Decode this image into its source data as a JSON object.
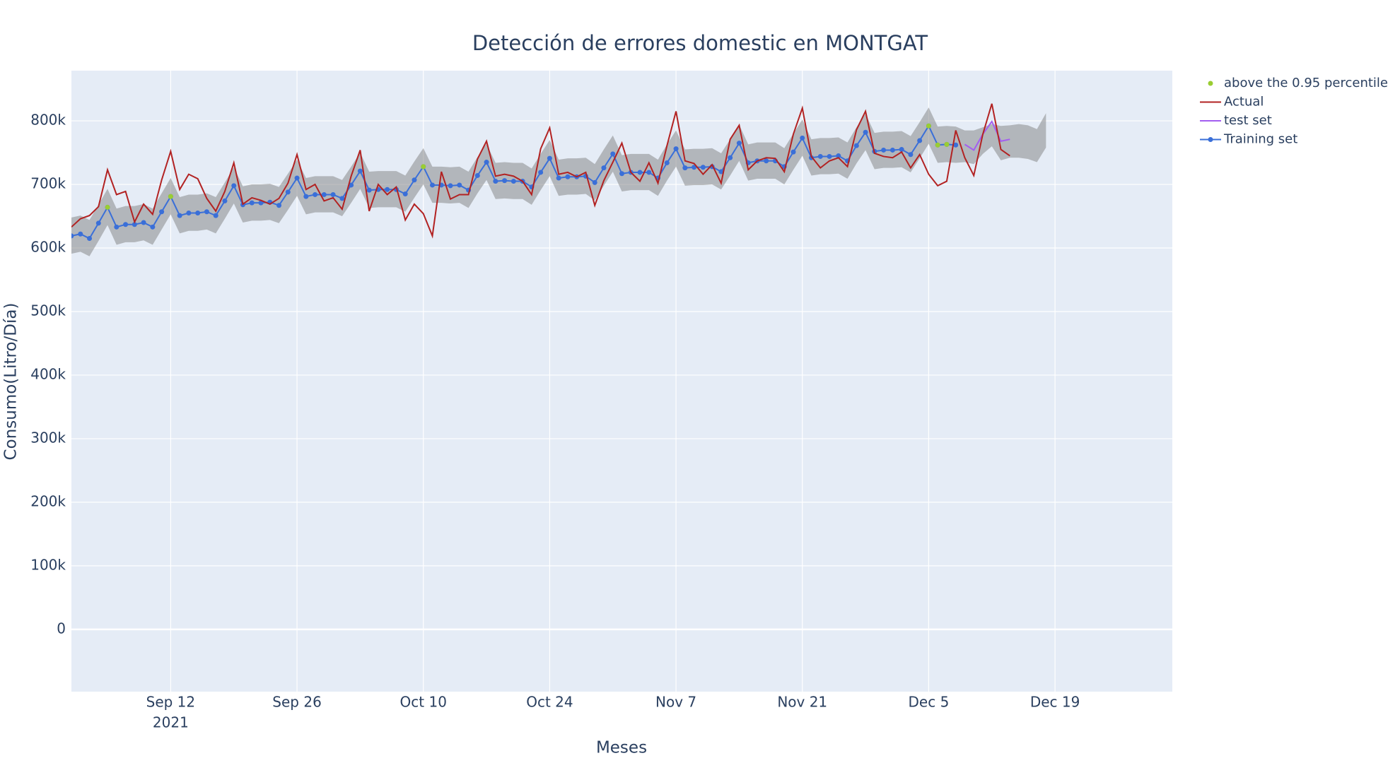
{
  "chart_data": {
    "type": "line",
    "title": "Detección de errores domestic en MONTGAT",
    "x_label": "Meses",
    "y_label": "Consumo(Litro/Día)",
    "x": [
      "2021-09-01",
      "2021-09-02",
      "2021-09-03",
      "2021-09-04",
      "2021-09-05",
      "2021-09-06",
      "2021-09-07",
      "2021-09-08",
      "2021-09-09",
      "2021-09-10",
      "2021-09-11",
      "2021-09-12",
      "2021-09-13",
      "2021-09-14",
      "2021-09-15",
      "2021-09-16",
      "2021-09-17",
      "2021-09-18",
      "2021-09-19",
      "2021-09-20",
      "2021-09-21",
      "2021-09-22",
      "2021-09-23",
      "2021-09-24",
      "2021-09-25",
      "2021-09-26",
      "2021-09-27",
      "2021-09-28",
      "2021-09-29",
      "2021-09-30",
      "2021-10-01",
      "2021-10-02",
      "2021-10-03",
      "2021-10-04",
      "2021-10-05",
      "2021-10-06",
      "2021-10-07",
      "2021-10-08",
      "2021-10-09",
      "2021-10-10",
      "2021-10-11",
      "2021-10-12",
      "2021-10-13",
      "2021-10-14",
      "2021-10-15",
      "2021-10-16",
      "2021-10-17",
      "2021-10-18",
      "2021-10-19",
      "2021-10-20",
      "2021-10-21",
      "2021-10-22",
      "2021-10-23",
      "2021-10-24",
      "2021-10-25",
      "2021-10-26",
      "2021-10-27",
      "2021-10-28",
      "2021-10-29",
      "2021-10-30",
      "2021-10-31",
      "2021-11-01",
      "2021-11-02",
      "2021-11-03",
      "2021-11-04",
      "2021-11-05",
      "2021-11-06",
      "2021-11-07",
      "2021-11-08",
      "2021-11-09",
      "2021-11-10",
      "2021-11-11",
      "2021-11-12",
      "2021-11-13",
      "2021-11-14",
      "2021-11-15",
      "2021-11-16",
      "2021-11-17",
      "2021-11-18",
      "2021-11-19",
      "2021-11-20",
      "2021-11-21",
      "2021-11-22",
      "2021-11-23",
      "2021-11-24",
      "2021-11-25",
      "2021-11-26",
      "2021-11-27",
      "2021-11-28",
      "2021-11-29",
      "2021-11-30",
      "2021-12-01",
      "2021-12-02",
      "2021-12-03",
      "2021-12-04",
      "2021-12-05",
      "2021-12-06",
      "2021-12-07",
      "2021-12-08",
      "2021-12-09",
      "2021-12-10",
      "2021-12-11",
      "2021-12-12",
      "2021-12-13",
      "2021-12-14",
      "2021-12-15",
      "2021-12-16",
      "2021-12-17",
      "2021-12-18"
    ],
    "band": {
      "color": "rgba(128,128,128,0.5)",
      "upper": [
        648000,
        651000,
        644000,
        668000,
        693000,
        662000,
        666000,
        666000,
        669000,
        662000,
        686000,
        710000,
        680000,
        684000,
        684000,
        686000,
        680000,
        703000,
        727000,
        697000,
        700000,
        700000,
        701000,
        696000,
        717000,
        739000,
        710000,
        713000,
        713000,
        713000,
        707000,
        728000,
        750000,
        720000,
        721000,
        721000,
        721000,
        714000,
        736000,
        757000,
        728000,
        728000,
        727000,
        728000,
        720000,
        743000,
        764000,
        734000,
        735000,
        734000,
        734000,
        725000,
        748000,
        770000,
        739000,
        741000,
        741000,
        742000,
        732000,
        755000,
        777000,
        746000,
        748000,
        748000,
        748000,
        739000,
        763000,
        785000,
        755000,
        756000,
        756000,
        757000,
        749000,
        771000,
        794000,
        763000,
        766000,
        766000,
        766000,
        757000,
        780000,
        802000,
        771000,
        773000,
        773000,
        774000,
        766000,
        790000,
        811000,
        781000,
        783000,
        783000,
        784000,
        776000,
        798000,
        821000,
        791000,
        792000,
        791000,
        785000,
        785000,
        790000,
        795000,
        792000,
        793000,
        795000,
        793000,
        787000,
        812000
      ],
      "lower": [
        591000,
        594000,
        587000,
        611000,
        636000,
        605000,
        609000,
        609000,
        612000,
        605000,
        629000,
        653000,
        623000,
        627000,
        627000,
        629000,
        623000,
        646000,
        670000,
        640000,
        643000,
        643000,
        644000,
        639000,
        660000,
        682000,
        653000,
        656000,
        656000,
        656000,
        650000,
        671000,
        693000,
        663000,
        664000,
        664000,
        664000,
        657000,
        679000,
        700000,
        671000,
        671000,
        670000,
        671000,
        663000,
        686000,
        707000,
        677000,
        678000,
        677000,
        677000,
        668000,
        691000,
        713000,
        682000,
        684000,
        684000,
        685000,
        675000,
        698000,
        720000,
        689000,
        691000,
        691000,
        691000,
        682000,
        706000,
        728000,
        698000,
        699000,
        699000,
        700000,
        692000,
        714000,
        737000,
        706000,
        709000,
        709000,
        709000,
        700000,
        723000,
        745000,
        714000,
        716000,
        716000,
        717000,
        709000,
        733000,
        754000,
        724000,
        726000,
        726000,
        727000,
        719000,
        741000,
        764000,
        734000,
        735000,
        734000,
        735000,
        732000,
        748000,
        760000,
        738000,
        742000,
        742000,
        740000,
        735000,
        758000
      ]
    },
    "series": [
      {
        "name": "above the 0.95 percentile",
        "color": "#9acd32",
        "mode": "markers",
        "values": [
          null,
          null,
          null,
          null,
          664000,
          null,
          null,
          null,
          null,
          null,
          null,
          681000,
          null,
          null,
          null,
          null,
          null,
          null,
          null,
          null,
          null,
          null,
          null,
          null,
          null,
          null,
          null,
          null,
          null,
          null,
          null,
          null,
          null,
          null,
          null,
          null,
          null,
          null,
          null,
          728000,
          null,
          null,
          null,
          null,
          null,
          null,
          null,
          null,
          null,
          null,
          null,
          null,
          null,
          null,
          null,
          null,
          null,
          null,
          null,
          null,
          null,
          null,
          null,
          null,
          null,
          null,
          null,
          null,
          null,
          null,
          null,
          null,
          null,
          null,
          null,
          null,
          null,
          null,
          null,
          null,
          null,
          null,
          null,
          null,
          null,
          null,
          null,
          null,
          null,
          null,
          null,
          null,
          null,
          null,
          null,
          792000,
          762000,
          763000,
          null,
          null,
          null,
          null,
          null,
          null,
          null,
          null,
          null,
          null,
          null
        ]
      },
      {
        "name": "Actual",
        "color": "#b22222",
        "mode": "lines",
        "values": [
          633000,
          646000,
          651000,
          665000,
          723000,
          684000,
          689000,
          641000,
          669000,
          653000,
          707000,
          752000,
          692000,
          716000,
          709000,
          678000,
          658000,
          689000,
          734000,
          669000,
          679000,
          675000,
          669000,
          678000,
          702000,
          747000,
          692000,
          700000,
          674000,
          679000,
          661000,
          713000,
          754000,
          658000,
          700000,
          684000,
          696000,
          644000,
          669000,
          654000,
          619000,
          720000,
          677000,
          684000,
          684000,
          740000,
          768000,
          713000,
          716000,
          713000,
          705000,
          684000,
          756000,
          789000,
          716000,
          719000,
          712000,
          719000,
          667000,
          706000,
          735000,
          765000,
          719000,
          705000,
          734000,
          702000,
          761000,
          815000,
          737000,
          733000,
          716000,
          731000,
          702000,
          771000,
          793000,
          723000,
          737000,
          742000,
          741000,
          720000,
          779000,
          820000,
          744000,
          726000,
          737000,
          742000,
          728000,
          786000,
          815000,
          749000,
          744000,
          742000,
          751000,
          726000,
          747000,
          716000,
          698000,
          705000,
          785000,
          742000,
          714000,
          779000,
          827000,
          755000,
          745000,
          null,
          null,
          null,
          null
        ]
      },
      {
        "name": "test set",
        "color": "#a35ef0",
        "mode": "lines",
        "values": [
          null,
          null,
          null,
          null,
          null,
          null,
          null,
          null,
          null,
          null,
          null,
          null,
          null,
          null,
          null,
          null,
          null,
          null,
          null,
          null,
          null,
          null,
          null,
          null,
          null,
          null,
          null,
          null,
          null,
          null,
          null,
          null,
          null,
          null,
          null,
          null,
          null,
          null,
          null,
          null,
          null,
          null,
          null,
          null,
          null,
          null,
          null,
          null,
          null,
          null,
          null,
          null,
          null,
          null,
          null,
          null,
          null,
          null,
          null,
          null,
          null,
          null,
          null,
          null,
          null,
          null,
          null,
          null,
          null,
          null,
          null,
          null,
          null,
          null,
          null,
          null,
          null,
          null,
          null,
          null,
          null,
          null,
          null,
          null,
          null,
          null,
          null,
          null,
          null,
          null,
          null,
          null,
          null,
          null,
          null,
          null,
          null,
          null,
          null,
          763000,
          754000,
          779000,
          799000,
          768000,
          771000,
          null,
          null,
          null,
          null
        ]
      },
      {
        "name": "Training set",
        "color": "#3a6fd8",
        "mode": "lines+markers",
        "values": [
          619000,
          622000,
          615000,
          639000,
          664000,
          633000,
          637000,
          637000,
          640000,
          633000,
          657000,
          681000,
          651000,
          655000,
          655000,
          657000,
          651000,
          674000,
          698000,
          668000,
          671000,
          671000,
          672000,
          667000,
          688000,
          710000,
          681000,
          684000,
          684000,
          684000,
          678000,
          699000,
          721000,
          691000,
          692000,
          692000,
          692000,
          685000,
          707000,
          728000,
          699000,
          699000,
          698000,
          699000,
          691000,
          714000,
          735000,
          705000,
          706000,
          705000,
          705000,
          696000,
          719000,
          741000,
          710000,
          712000,
          712000,
          713000,
          703000,
          726000,
          748000,
          717000,
          719000,
          719000,
          719000,
          710000,
          734000,
          756000,
          726000,
          727000,
          727000,
          728000,
          720000,
          742000,
          765000,
          734000,
          737000,
          737000,
          737000,
          728000,
          751000,
          773000,
          742000,
          744000,
          744000,
          745000,
          737000,
          761000,
          782000,
          752000,
          754000,
          754000,
          755000,
          747000,
          769000,
          792000,
          762000,
          763000,
          762000,
          null,
          null,
          null,
          null,
          null,
          null,
          null,
          null,
          null,
          null
        ]
      }
    ],
    "xlim": [
      "2021-09-01",
      "2022-01-01"
    ],
    "xticks": [
      {
        "value": "2021-09-12",
        "label": "Sep 12"
      },
      {
        "value": "2021-09-26",
        "label": "Sep 26"
      },
      {
        "value": "2021-10-10",
        "label": "Oct 10"
      },
      {
        "value": "2021-10-24",
        "label": "Oct 24"
      },
      {
        "value": "2021-11-07",
        "label": "Nov 7"
      },
      {
        "value": "2021-11-21",
        "label": "Nov 21"
      },
      {
        "value": "2021-12-05",
        "label": "Dec 5"
      },
      {
        "value": "2021-12-19",
        "label": "Dec 19"
      }
    ],
    "x_year": "2021",
    "ylim": [
      -98000,
      879000
    ],
    "yticks": [
      0,
      {
        "value": 100000,
        "label": "100k"
      },
      {
        "value": 200000,
        "label": "200k"
      },
      {
        "value": 300000,
        "label": "300k"
      },
      {
        "value": 400000,
        "label": "400k"
      },
      {
        "value": 500000,
        "label": "500k"
      },
      {
        "value": 600000,
        "label": "600k"
      },
      {
        "value": 700000,
        "label": "700k"
      },
      {
        "value": 800000,
        "label": "800k"
      }
    ],
    "grid": true
  }
}
